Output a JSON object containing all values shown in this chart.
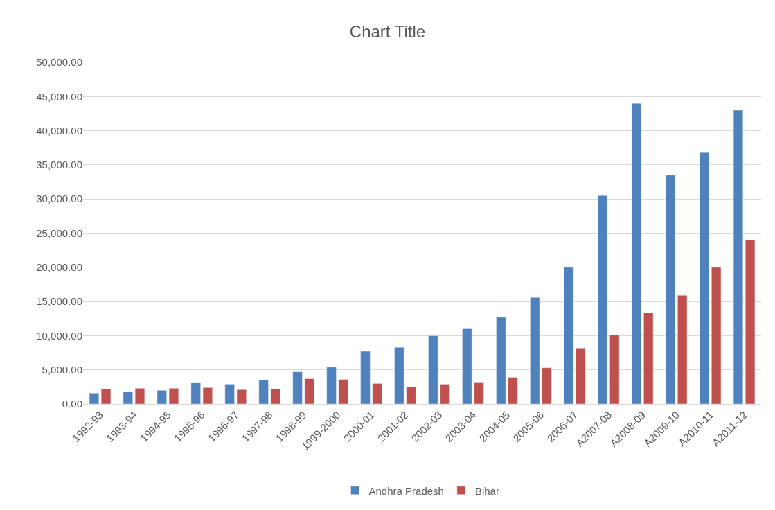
{
  "chart_data": {
    "type": "bar",
    "title": "Chart Title",
    "categories": [
      "1992-93",
      "1993-94",
      "1994-95",
      "1995-96",
      "1996-97",
      "1997-98",
      "1998-99",
      "1999-2000",
      "2000-01",
      "2001-02",
      "2002-03",
      "2003-04",
      "2004-05",
      "2005-06",
      "2006-07",
      "A2007-08",
      "A2008-09",
      "A2009-10",
      "A2010-11",
      "A2011-12"
    ],
    "series": [
      {
        "name": "Andhra Pradesh",
        "color": "#4f81bd",
        "values": [
          1600,
          1800,
          2000,
          3150,
          2900,
          3500,
          4700,
          5400,
          7700,
          8300,
          10000,
          11000,
          12700,
          15600,
          20000,
          30500,
          44000,
          33500,
          36800,
          43000
        ]
      },
      {
        "name": "Bihar",
        "color": "#c0504d",
        "values": [
          2200,
          2300,
          2300,
          2400,
          2100,
          2200,
          3700,
          3600,
          3000,
          2500,
          2900,
          3200,
          3900,
          5300,
          8200,
          10100,
          13400,
          15900,
          20000,
          24000
        ]
      }
    ],
    "ylim": [
      0,
      50000
    ],
    "yticks": [
      {
        "value": 0,
        "label": "0.00"
      },
      {
        "value": 5000,
        "label": "5,000.00"
      },
      {
        "value": 10000,
        "label": "10,000.00"
      },
      {
        "value": 15000,
        "label": "15,000.00"
      },
      {
        "value": 20000,
        "label": "20,000.00"
      },
      {
        "value": 25000,
        "label": "25,000.00"
      },
      {
        "value": 30000,
        "label": "30,000.00"
      },
      {
        "value": 35000,
        "label": "35,000.00"
      },
      {
        "value": 40000,
        "label": "40,000.00"
      },
      {
        "value": 45000,
        "label": "45,000.00"
      },
      {
        "value": 50000,
        "label": "50,000.00"
      }
    ],
    "grid": "y",
    "legend": "bottom"
  }
}
